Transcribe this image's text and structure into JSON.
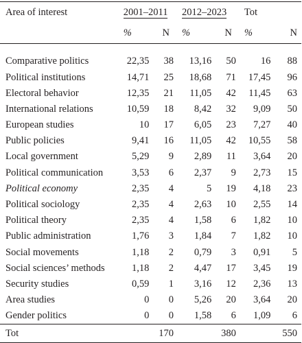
{
  "headers": {
    "area": "Area of interest",
    "period1": "2001–2011",
    "period2": "2012–2023",
    "total": "Tot",
    "pct": "%",
    "n": "N"
  },
  "rows": [
    {
      "area": "Comparative politics",
      "p1": "22,35",
      "n1": "38",
      "p2": "13,16",
      "n2": "50",
      "p3": "16",
      "n3": "88",
      "italic": false
    },
    {
      "area": "Political institutions",
      "p1": "14,71",
      "n1": "25",
      "p2": "18,68",
      "n2": "71",
      "p3": "17,45",
      "n3": "96",
      "italic": false
    },
    {
      "area": "Electoral behavior",
      "p1": "12,35",
      "n1": "21",
      "p2": "11,05",
      "n2": "42",
      "p3": "11,45",
      "n3": "63",
      "italic": false
    },
    {
      "area": "International relations",
      "p1": "10,59",
      "n1": "18",
      "p2": "8,42",
      "n2": "32",
      "p3": "9,09",
      "n3": "50",
      "italic": false
    },
    {
      "area": "European studies",
      "p1": "10",
      "n1": "17",
      "p2": "6,05",
      "n2": "23",
      "p3": "7,27",
      "n3": "40",
      "italic": false
    },
    {
      "area": "Public policies",
      "p1": "9,41",
      "n1": "16",
      "p2": "11,05",
      "n2": "42",
      "p3": "10,55",
      "n3": "58",
      "italic": false
    },
    {
      "area": "Local government",
      "p1": "5,29",
      "n1": "9",
      "p2": "2,89",
      "n2": "11",
      "p3": "3,64",
      "n3": "20",
      "italic": false
    },
    {
      "area": "Political communication",
      "p1": "3,53",
      "n1": "6",
      "p2": "2,37",
      "n2": "9",
      "p3": "2,73",
      "n3": "15",
      "italic": false
    },
    {
      "area": "Political economy",
      "p1": "2,35",
      "n1": "4",
      "p2": "5",
      "n2": "19",
      "p3": "4,18",
      "n3": "23",
      "italic": true
    },
    {
      "area": "Political sociology",
      "p1": "2,35",
      "n1": "4",
      "p2": "2,63",
      "n2": "10",
      "p3": "2,55",
      "n3": "14",
      "italic": false
    },
    {
      "area": "Political theory",
      "p1": "2,35",
      "n1": "4",
      "p2": "1,58",
      "n2": "6",
      "p3": "1,82",
      "n3": "10",
      "italic": false
    },
    {
      "area": "Public administration",
      "p1": "1,76",
      "n1": "3",
      "p2": "1,84",
      "n2": "7",
      "p3": "1,82",
      "n3": "10",
      "italic": false
    },
    {
      "area": "Social movements",
      "p1": "1,18",
      "n1": "2",
      "p2": "0,79",
      "n2": "3",
      "p3": "0,91",
      "n3": "5",
      "italic": false
    },
    {
      "area": "Social sciences’ methods",
      "p1": "1,18",
      "n1": "2",
      "p2": "4,47",
      "n2": "17",
      "p3": "3,45",
      "n3": "19",
      "italic": false
    },
    {
      "area": "Security studies",
      "p1": "0,59",
      "n1": "1",
      "p2": "3,16",
      "n2": "12",
      "p3": "2,36",
      "n3": "13",
      "italic": false
    },
    {
      "area": "Area studies",
      "p1": "0",
      "n1": "0",
      "p2": "5,26",
      "n2": "20",
      "p3": "3,64",
      "n3": "20",
      "italic": false
    },
    {
      "area": "Gender politics",
      "p1": "0",
      "n1": "0",
      "p2": "1,58",
      "n2": "6",
      "p3": "1,09",
      "n3": "6",
      "italic": false
    }
  ],
  "total": {
    "label": "Tot",
    "n1": "170",
    "n2": "380",
    "n3": "550"
  }
}
